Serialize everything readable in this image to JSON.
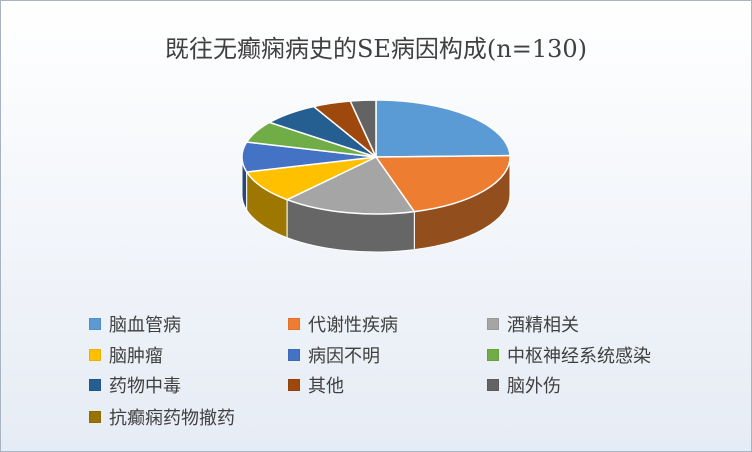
{
  "chart_data": {
    "type": "pie",
    "title": "既往无癫痫病史的SE病因构成(n=130)",
    "categories": [
      "脑血管病",
      "代谢性疾病",
      "酒精相关",
      "脑肿瘤",
      "病因不明",
      "中枢神经系统感染",
      "药物中毒",
      "其他",
      "脑外伤",
      "抗癫痫药物撤药"
    ],
    "values": [
      32,
      27,
      21,
      12,
      11,
      8,
      9,
      6,
      4,
      0
    ],
    "colors": [
      "#5b9bd5",
      "#ed7d31",
      "#a5a5a5",
      "#ffc000",
      "#4472c4",
      "#70ad47",
      "#255e91",
      "#9e480e",
      "#636363",
      "#997300"
    ],
    "legend_position": "bottom",
    "style": "3d"
  }
}
